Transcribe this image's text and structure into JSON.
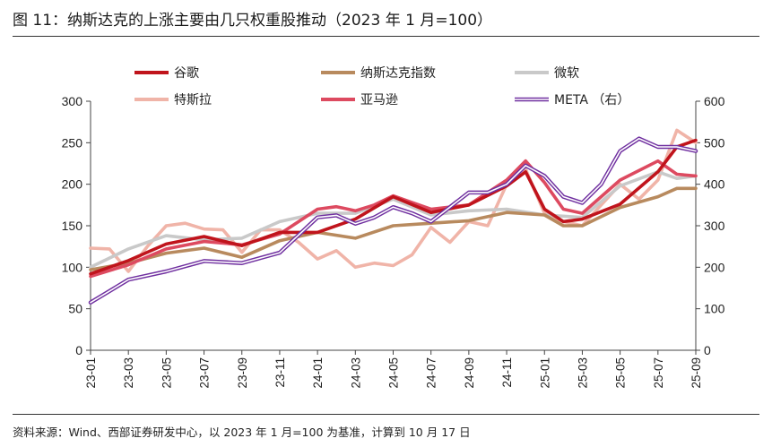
{
  "page": {
    "title": "图 11：纳斯达克的上涨主要由几只权重股推动（2023 年 1 月=100）",
    "source": "资料来源：Wind、西部证券研发中心，以 2023 年 1 月=100 为基准，计算到 10 月 17 日"
  },
  "chart_data": {
    "type": "line",
    "title": "纳斯达克的上涨主要由几只权重股推动（2023 年 1 月=100）",
    "x_tick_labels": [
      "23-01",
      "23-03",
      "23-05",
      "23-07",
      "23-09",
      "23-11",
      "24-01",
      "24-03",
      "24-05",
      "24-07",
      "24-09",
      "24-11",
      "25-01",
      "25-03",
      "25-05",
      "25-07",
      "25-09"
    ],
    "x_range": [
      0,
      32
    ],
    "y_left": {
      "min": 0,
      "max": 300,
      "ticks": [
        0,
        50,
        100,
        150,
        200,
        250,
        300
      ]
    },
    "y_right": {
      "min": 0,
      "max": 600,
      "ticks": [
        0,
        100,
        200,
        300,
        400,
        500,
        600
      ]
    },
    "legend_position": "top",
    "series": [
      {
        "name": "谷歌",
        "axis": "left",
        "color": "#c0141c",
        "x": [
          0,
          2,
          4,
          6,
          8,
          10,
          12,
          14,
          16,
          18,
          20,
          22,
          23,
          24,
          25,
          26,
          28,
          30,
          31,
          32
        ],
        "values": [
          92,
          108,
          128,
          137,
          126,
          142,
          142,
          158,
          185,
          166,
          175,
          198,
          215,
          170,
          155,
          158,
          176,
          215,
          245,
          253
        ]
      },
      {
        "name": "纳斯达克指数",
        "axis": "left",
        "color": "#b88a5e",
        "x": [
          0,
          2,
          4,
          6,
          8,
          10,
          12,
          14,
          16,
          18,
          20,
          22,
          24,
          25,
          26,
          28,
          30,
          31,
          32
        ],
        "values": [
          97,
          105,
          117,
          123,
          112,
          132,
          142,
          135,
          150,
          153,
          156,
          166,
          163,
          150,
          150,
          172,
          185,
          195,
          195
        ]
      },
      {
        "name": "微软",
        "axis": "left",
        "color": "#c9c9c9",
        "x": [
          0,
          2,
          4,
          6,
          8,
          10,
          12,
          14,
          16,
          18,
          20,
          22,
          24,
          26,
          28,
          30,
          31,
          32
        ],
        "values": [
          100,
          122,
          138,
          133,
          135,
          155,
          165,
          165,
          182,
          163,
          168,
          170,
          163,
          160,
          198,
          215,
          207,
          210
        ]
      },
      {
        "name": "特斯拉",
        "axis": "left",
        "color": "#f0b4a8",
        "x": [
          0,
          1,
          2,
          3,
          4,
          5,
          6,
          7,
          8,
          9,
          10,
          11,
          12,
          13,
          14,
          15,
          16,
          17,
          18,
          19,
          20,
          21,
          22,
          23,
          24,
          25,
          26,
          27,
          28,
          29,
          30,
          31,
          32
        ],
        "values": [
          123,
          122,
          95,
          125,
          150,
          153,
          146,
          145,
          118,
          145,
          145,
          130,
          110,
          120,
          100,
          105,
          102,
          115,
          148,
          130,
          155,
          150,
          200,
          218,
          165,
          155,
          150,
          175,
          200,
          182,
          205,
          265,
          250
        ]
      },
      {
        "name": "亚马逊",
        "axis": "left",
        "color": "#dd4a60",
        "x": [
          0,
          2,
          4,
          6,
          8,
          10,
          12,
          13,
          14,
          15,
          16,
          17,
          18,
          20,
          22,
          23,
          24,
          25,
          26,
          28,
          30,
          31,
          32
        ],
        "values": [
          89,
          103,
          122,
          131,
          127,
          140,
          170,
          173,
          168,
          175,
          186,
          178,
          170,
          175,
          205,
          228,
          202,
          170,
          165,
          205,
          228,
          212,
          210
        ]
      },
      {
        "name": "META （右）",
        "axis": "right",
        "color": "#7030a0",
        "x": [
          0,
          2,
          4,
          6,
          8,
          10,
          12,
          13,
          14,
          15,
          16,
          17,
          18,
          19,
          20,
          21,
          22,
          23,
          24,
          25,
          26,
          27,
          28,
          29,
          30,
          31,
          32
        ],
        "values": [
          115,
          170,
          190,
          215,
          210,
          235,
          320,
          325,
          305,
          320,
          345,
          330,
          310,
          345,
          380,
          380,
          400,
          445,
          420,
          370,
          355,
          400,
          480,
          510,
          490,
          490,
          480
        ]
      }
    ]
  }
}
